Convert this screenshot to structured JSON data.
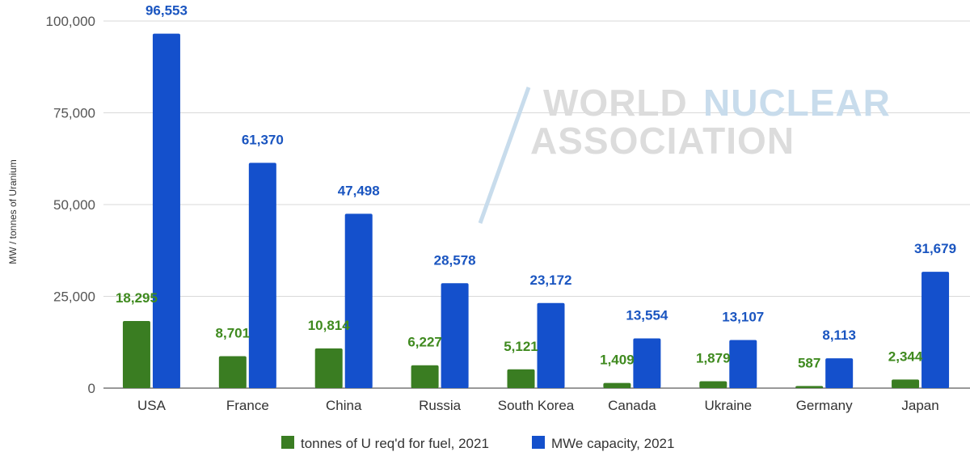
{
  "chart_data": {
    "type": "bar",
    "title": "",
    "xlabel": "",
    "ylabel": "MW / tonnes of Uranium",
    "ylim": [
      0,
      100000
    ],
    "yticks": [
      0,
      25000,
      50000,
      75000,
      100000
    ],
    "ytick_labels": [
      "0",
      "25,000",
      "50,000",
      "75,000",
      "100,000"
    ],
    "grid": true,
    "legend_position": "bottom",
    "categories": [
      "USA",
      "France",
      "China",
      "Russia",
      "South Korea",
      "Canada",
      "Ukraine",
      "Germany",
      "Japan"
    ],
    "series": [
      {
        "name": "tonnes of U req'd for fuel, 2021",
        "color": "#3a7d22",
        "label_color": "#3f8a1f",
        "values": [
          18295,
          8701,
          10814,
          6227,
          5121,
          1409,
          1879,
          587,
          2344
        ],
        "labels": [
          "18,295",
          "8,701",
          "10,814",
          "6,227",
          "5,121",
          "1,409",
          "1,879",
          "587",
          "2,344"
        ]
      },
      {
        "name": "MWe capacity, 2021",
        "color": "#1450cc",
        "label_color": "#1a55c0",
        "values": [
          96553,
          61370,
          47498,
          28578,
          23172,
          13554,
          13107,
          8113,
          31679
        ],
        "labels": [
          "96,553",
          "61,370",
          "47,498",
          "28,578",
          "23,172",
          "13,554",
          "13,107",
          "8,113",
          "31,679"
        ]
      }
    ]
  },
  "watermark": {
    "word1": "WORLD",
    "word2": "NUCLEAR",
    "word3": "ASSOCIATION",
    "color_gray": "#dcdcdc",
    "color_blue": "#c8dcec"
  }
}
